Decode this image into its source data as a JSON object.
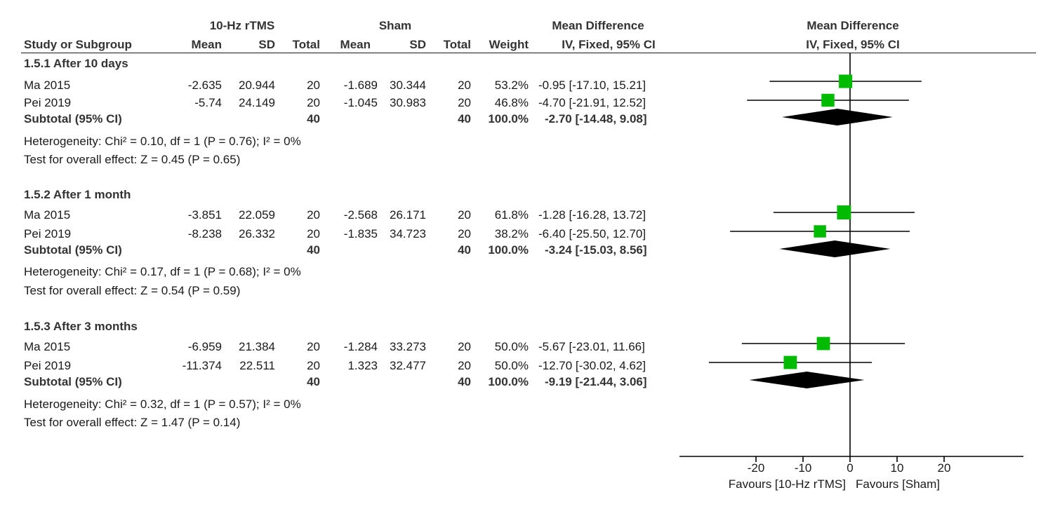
{
  "header": {
    "group1": "10-Hz rTMS",
    "group2": "Sham",
    "effect_col": "Mean Difference",
    "plot_col": "Mean Difference",
    "col_study": "Study or Subgroup",
    "col_mean1": "Mean",
    "col_sd1": "SD",
    "col_total1": "Total",
    "col_mean2": "Mean",
    "col_sd2": "SD",
    "col_total2": "Total",
    "col_weight": "Weight",
    "col_effect": "IV, Fixed, 95% CI",
    "plot_method": "IV, Fixed, 95% CI"
  },
  "subgroups": [
    {
      "title": "1.5.1 After 10 days",
      "studies": [
        {
          "name": "Ma 2015",
          "mean1": "-2.635",
          "sd1": "20.944",
          "total1": "20",
          "mean2": "-1.689",
          "sd2": "30.344",
          "total2": "20",
          "weight": "53.2%",
          "ci": "-0.95 [-17.10, 15.21]"
        },
        {
          "name": "Pei 2019",
          "mean1": "-5.74",
          "sd1": "24.149",
          "total1": "20",
          "mean2": "-1.045",
          "sd2": "30.983",
          "total2": "20",
          "weight": "46.8%",
          "ci": "-4.70 [-21.91, 12.52]"
        }
      ],
      "subtotal": {
        "label": "Subtotal (95% CI)",
        "total1": "40",
        "total2": "40",
        "weight": "100.0%",
        "ci": "-2.70 [-14.48, 9.08]"
      },
      "heterogeneity": "Heterogeneity: Chi² = 0.10, df = 1 (P = 0.76); I² = 0%",
      "overall": "Test for overall effect: Z = 0.45 (P = 0.65)"
    },
    {
      "title": "1.5.2 After 1 month",
      "studies": [
        {
          "name": "Ma 2015",
          "mean1": "-3.851",
          "sd1": "22.059",
          "total1": "20",
          "mean2": "-2.568",
          "sd2": "26.171",
          "total2": "20",
          "weight": "61.8%",
          "ci": "-1.28 [-16.28, 13.72]"
        },
        {
          "name": "Pei 2019",
          "mean1": "-8.238",
          "sd1": "26.332",
          "total1": "20",
          "mean2": "-1.835",
          "sd2": "34.723",
          "total2": "20",
          "weight": "38.2%",
          "ci": "-6.40 [-25.50, 12.70]"
        }
      ],
      "subtotal": {
        "label": "Subtotal (95% CI)",
        "total1": "40",
        "total2": "40",
        "weight": "100.0%",
        "ci": "-3.24 [-15.03, 8.56]"
      },
      "heterogeneity": "Heterogeneity: Chi² = 0.17, df = 1 (P = 0.68); I² = 0%",
      "overall": "Test for overall effect: Z = 0.54 (P = 0.59)"
    },
    {
      "title": "1.5.3 After 3 months",
      "studies": [
        {
          "name": "Ma 2015",
          "mean1": "-6.959",
          "sd1": "21.384",
          "total1": "20",
          "mean2": "-1.284",
          "sd2": "33.273",
          "total2": "20",
          "weight": "50.0%",
          "ci": "-5.67 [-23.01, 11.66]"
        },
        {
          "name": "Pei 2019",
          "mean1": "-11.374",
          "sd1": "22.511",
          "total1": "20",
          "mean2": "1.323",
          "sd2": "32.477",
          "total2": "20",
          "weight": "50.0%",
          "ci": "-12.70 [-30.02, 4.62]"
        }
      ],
      "subtotal": {
        "label": "Subtotal (95% CI)",
        "total1": "40",
        "total2": "40",
        "weight": "100.0%",
        "ci": "-9.19 [-21.44, 3.06]"
      },
      "heterogeneity": "Heterogeneity: Chi² = 0.32, df = 1 (P = 0.57); I² = 0%",
      "overall": "Test for overall effect: Z = 1.47 (P = 0.14)"
    }
  ],
  "chart_data": {
    "type": "forest",
    "xlim": [
      -30,
      30
    ],
    "ticks": [
      -20,
      -10,
      0,
      10,
      20
    ],
    "tick_labels": [
      "-20",
      "-10",
      "0",
      "10",
      "20"
    ],
    "favours_left": "Favours [10-Hz rTMS]",
    "favours_right": "Favours [Sham]",
    "colors": {
      "study_marker": "#00bb00",
      "summary_diamond": "#000000",
      "line": "#000000"
    },
    "subgroups": [
      {
        "studies": [
          {
            "md": -0.95,
            "lo": -17.1,
            "hi": 15.21,
            "weight": 53.2
          },
          {
            "md": -4.7,
            "lo": -21.91,
            "hi": 12.52,
            "weight": 46.8
          }
        ],
        "subtotal": {
          "md": -2.7,
          "lo": -14.48,
          "hi": 9.08
        }
      },
      {
        "studies": [
          {
            "md": -1.28,
            "lo": -16.28,
            "hi": 13.72,
            "weight": 61.8
          },
          {
            "md": -6.4,
            "lo": -25.5,
            "hi": 12.7,
            "weight": 38.2
          }
        ],
        "subtotal": {
          "md": -3.24,
          "lo": -15.03,
          "hi": 8.56
        }
      },
      {
        "studies": [
          {
            "md": -5.67,
            "lo": -23.01,
            "hi": 11.66,
            "weight": 50.0
          },
          {
            "md": -12.7,
            "lo": -30.02,
            "hi": 4.62,
            "weight": 50.0
          }
        ],
        "subtotal": {
          "md": -9.19,
          "lo": -21.44,
          "hi": 3.06
        }
      }
    ]
  }
}
